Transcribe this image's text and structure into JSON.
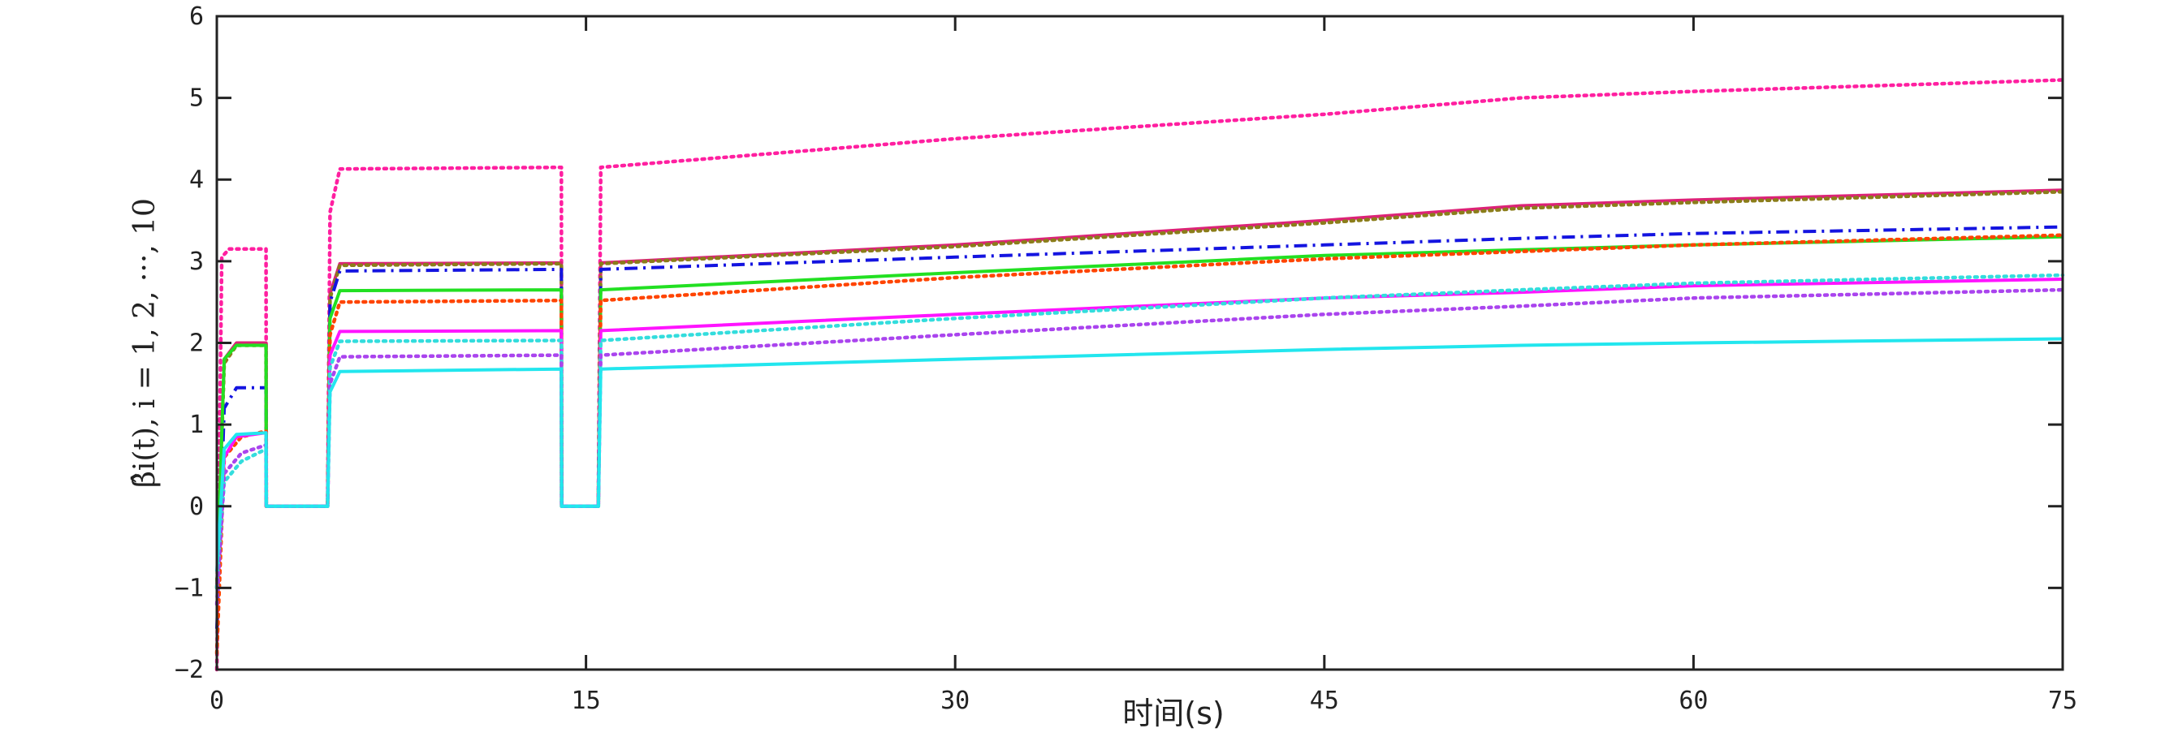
{
  "chart_data": {
    "type": "line",
    "xlabel": "时间(s)",
    "ylabel": "β̂i(t), i = 1, 2, ···, 10",
    "xlim": [
      0,
      75
    ],
    "ylim": [
      -2,
      6
    ],
    "xticks": [
      0,
      15,
      30,
      45,
      60,
      75
    ],
    "yticks": [
      -2,
      -1,
      0,
      1,
      2,
      3,
      4,
      5,
      6
    ],
    "xtick_labels": [
      "0",
      "15",
      "30",
      "45",
      "60",
      "75"
    ],
    "ytick_labels": [
      "−2",
      "−1",
      "0",
      "1",
      "2",
      "3",
      "4",
      "5",
      "6"
    ],
    "grid": false,
    "series": [
      {
        "color": "#ff1fa0",
        "style": "dotted",
        "x": [
          0,
          0.2,
          0.5,
          2.0,
          2.01,
          4.5,
          4.6,
          5.0,
          14.0,
          14.01,
          15.5,
          15.6,
          30,
          45,
          53,
          60,
          75
        ],
        "y": [
          -2.0,
          3.05,
          3.15,
          3.15,
          0.0,
          0.0,
          3.6,
          4.13,
          4.15,
          0.0,
          0.0,
          4.15,
          4.5,
          4.8,
          5.0,
          5.08,
          5.22
        ]
      },
      {
        "color": "#dd2277",
        "style": "solid",
        "x": [
          0,
          0.3,
          0.8,
          2.0,
          2.01,
          4.5,
          4.6,
          5.0,
          14.0,
          14.01,
          15.5,
          15.6,
          30,
          45,
          53,
          60,
          75
        ],
        "y": [
          -1.0,
          1.8,
          2.0,
          2.0,
          0.0,
          0.0,
          2.6,
          2.97,
          2.98,
          0.0,
          0.0,
          2.98,
          3.2,
          3.5,
          3.68,
          3.75,
          3.87
        ]
      },
      {
        "color": "#8b7d1a",
        "style": "dotted",
        "x": [
          0,
          0.3,
          0.8,
          2.0,
          2.01,
          4.5,
          4.6,
          5.0,
          14.0,
          14.01,
          15.5,
          15.6,
          30,
          45,
          53,
          60,
          75
        ],
        "y": [
          -1.0,
          1.75,
          1.97,
          1.97,
          0.0,
          0.0,
          2.55,
          2.95,
          2.97,
          0.0,
          0.0,
          2.97,
          3.18,
          3.47,
          3.65,
          3.72,
          3.85
        ]
      },
      {
        "color": "#1414e0",
        "style": "dashdot",
        "x": [
          0,
          0.3,
          0.8,
          2.0,
          2.01,
          4.5,
          4.6,
          5.0,
          14.0,
          14.01,
          15.5,
          15.6,
          30,
          45,
          53,
          60,
          75
        ],
        "y": [
          -1.5,
          1.2,
          1.45,
          1.45,
          0.0,
          0.0,
          2.5,
          2.88,
          2.9,
          0.0,
          0.0,
          2.9,
          3.05,
          3.2,
          3.28,
          3.34,
          3.42
        ]
      },
      {
        "color": "#22e022",
        "style": "solid",
        "x": [
          0,
          0.3,
          0.8,
          2.0,
          2.01,
          4.5,
          4.6,
          5.0,
          14.0,
          14.01,
          15.5,
          15.6,
          30,
          45,
          53,
          60,
          75
        ],
        "y": [
          -1.0,
          1.8,
          1.97,
          1.97,
          0.0,
          0.0,
          2.3,
          2.64,
          2.65,
          0.0,
          0.0,
          2.65,
          2.86,
          3.07,
          3.14,
          3.2,
          3.3
        ]
      },
      {
        "color": "#ff4400",
        "style": "dotted",
        "x": [
          0,
          0.3,
          1.0,
          2.0,
          2.01,
          4.5,
          4.6,
          5.0,
          14.0,
          14.01,
          15.5,
          15.6,
          30,
          45,
          53,
          60,
          75
        ],
        "y": [
          -1.8,
          0.6,
          0.85,
          0.92,
          0.0,
          0.0,
          2.1,
          2.5,
          2.52,
          0.0,
          0.0,
          2.52,
          2.8,
          3.03,
          3.12,
          3.2,
          3.32
        ]
      },
      {
        "color": "#ff14ff",
        "style": "solid",
        "x": [
          0,
          0.3,
          0.8,
          2.0,
          2.01,
          4.5,
          4.6,
          5.0,
          14.0,
          14.01,
          15.5,
          15.6,
          30,
          45,
          53,
          60,
          75
        ],
        "y": [
          -1.0,
          0.6,
          0.85,
          0.9,
          0.0,
          0.0,
          1.85,
          2.14,
          2.15,
          0.0,
          0.0,
          2.15,
          2.35,
          2.55,
          2.62,
          2.7,
          2.78
        ]
      },
      {
        "color": "#33dddd",
        "style": "dotted",
        "x": [
          0,
          0.3,
          1.0,
          2.0,
          2.01,
          4.5,
          4.6,
          5.0,
          14.0,
          14.01,
          15.5,
          15.6,
          30,
          45,
          53,
          60,
          75
        ],
        "y": [
          -1.0,
          0.3,
          0.55,
          0.7,
          0.0,
          0.0,
          1.7,
          2.02,
          2.03,
          0.0,
          0.0,
          2.03,
          2.3,
          2.55,
          2.65,
          2.73,
          2.83
        ]
      },
      {
        "color": "#aa44ee",
        "style": "dotted",
        "x": [
          0,
          0.3,
          1.0,
          2.0,
          2.01,
          4.5,
          4.6,
          5.0,
          14.0,
          14.01,
          15.5,
          15.6,
          30,
          45,
          53,
          60,
          75
        ],
        "y": [
          -1.2,
          0.4,
          0.65,
          0.75,
          0.0,
          0.0,
          1.5,
          1.83,
          1.85,
          0.0,
          0.0,
          1.85,
          2.1,
          2.35,
          2.45,
          2.55,
          2.65
        ]
      },
      {
        "color": "#22e6ee",
        "style": "solid",
        "x": [
          0,
          0.3,
          0.8,
          2.0,
          2.01,
          4.5,
          4.6,
          5.0,
          14.0,
          14.01,
          15.5,
          15.6,
          30,
          45,
          53,
          60,
          75
        ],
        "y": [
          -0.8,
          0.7,
          0.88,
          0.9,
          0.0,
          0.0,
          1.4,
          1.65,
          1.68,
          0.0,
          0.0,
          1.68,
          1.8,
          1.92,
          1.97,
          2.0,
          2.05
        ]
      }
    ]
  }
}
